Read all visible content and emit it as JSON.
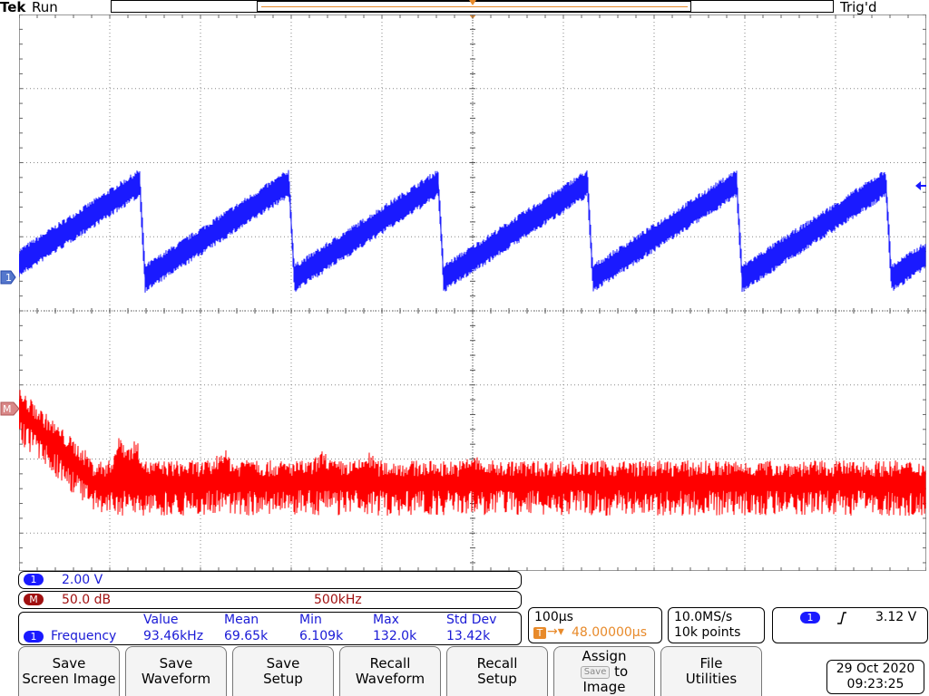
{
  "top": {
    "brand": "Tek",
    "status": "Run",
    "trigger_status": "Trig'd"
  },
  "channel1": {
    "badge": "1",
    "scale": "2.00 V"
  },
  "math": {
    "badge": "M",
    "scale": "50.0 dB",
    "span": "500kHz"
  },
  "measurement": {
    "badge": "1",
    "name": "Frequency",
    "headers": [
      "Value",
      "Mean",
      "Min",
      "Max",
      "Std Dev"
    ],
    "values": [
      "93.46kHz",
      "69.65k",
      "6.109k",
      "132.0k",
      "13.42k"
    ]
  },
  "timebase": {
    "scale": "100µs",
    "trigger_offset": "48.00000µs",
    "sample_rate": "10.0MS/s",
    "record_length": "10k points"
  },
  "trigger": {
    "badge": "1",
    "slope": "rising",
    "level": "3.12 V"
  },
  "menu": {
    "buttons": [
      {
        "line1": "Save",
        "line2": "Screen Image"
      },
      {
        "line1": "Save",
        "line2": "Waveform"
      },
      {
        "line1": "Save",
        "line2": "Setup"
      },
      {
        "line1": "Recall",
        "line2": "Waveform"
      },
      {
        "line1": "Recall",
        "line2": "Setup"
      },
      {
        "line1": "Assign",
        "chip": "Save",
        "to": "to",
        "line3": "Image"
      },
      {
        "line1": "File",
        "line2": "Utilities"
      }
    ]
  },
  "datetime": {
    "date": "29 Oct  2020",
    "time": "09:23:25"
  },
  "colors": {
    "ch1": "#1a1aff",
    "math": "#ff0000",
    "trigger": "#e88a2a"
  },
  "icons": {
    "ch1_marker": "channel-1-ground-marker",
    "math_marker": "math-marker",
    "trigger_level": "trigger-level-arrow",
    "trigger_position": "trigger-position-arrow"
  }
}
